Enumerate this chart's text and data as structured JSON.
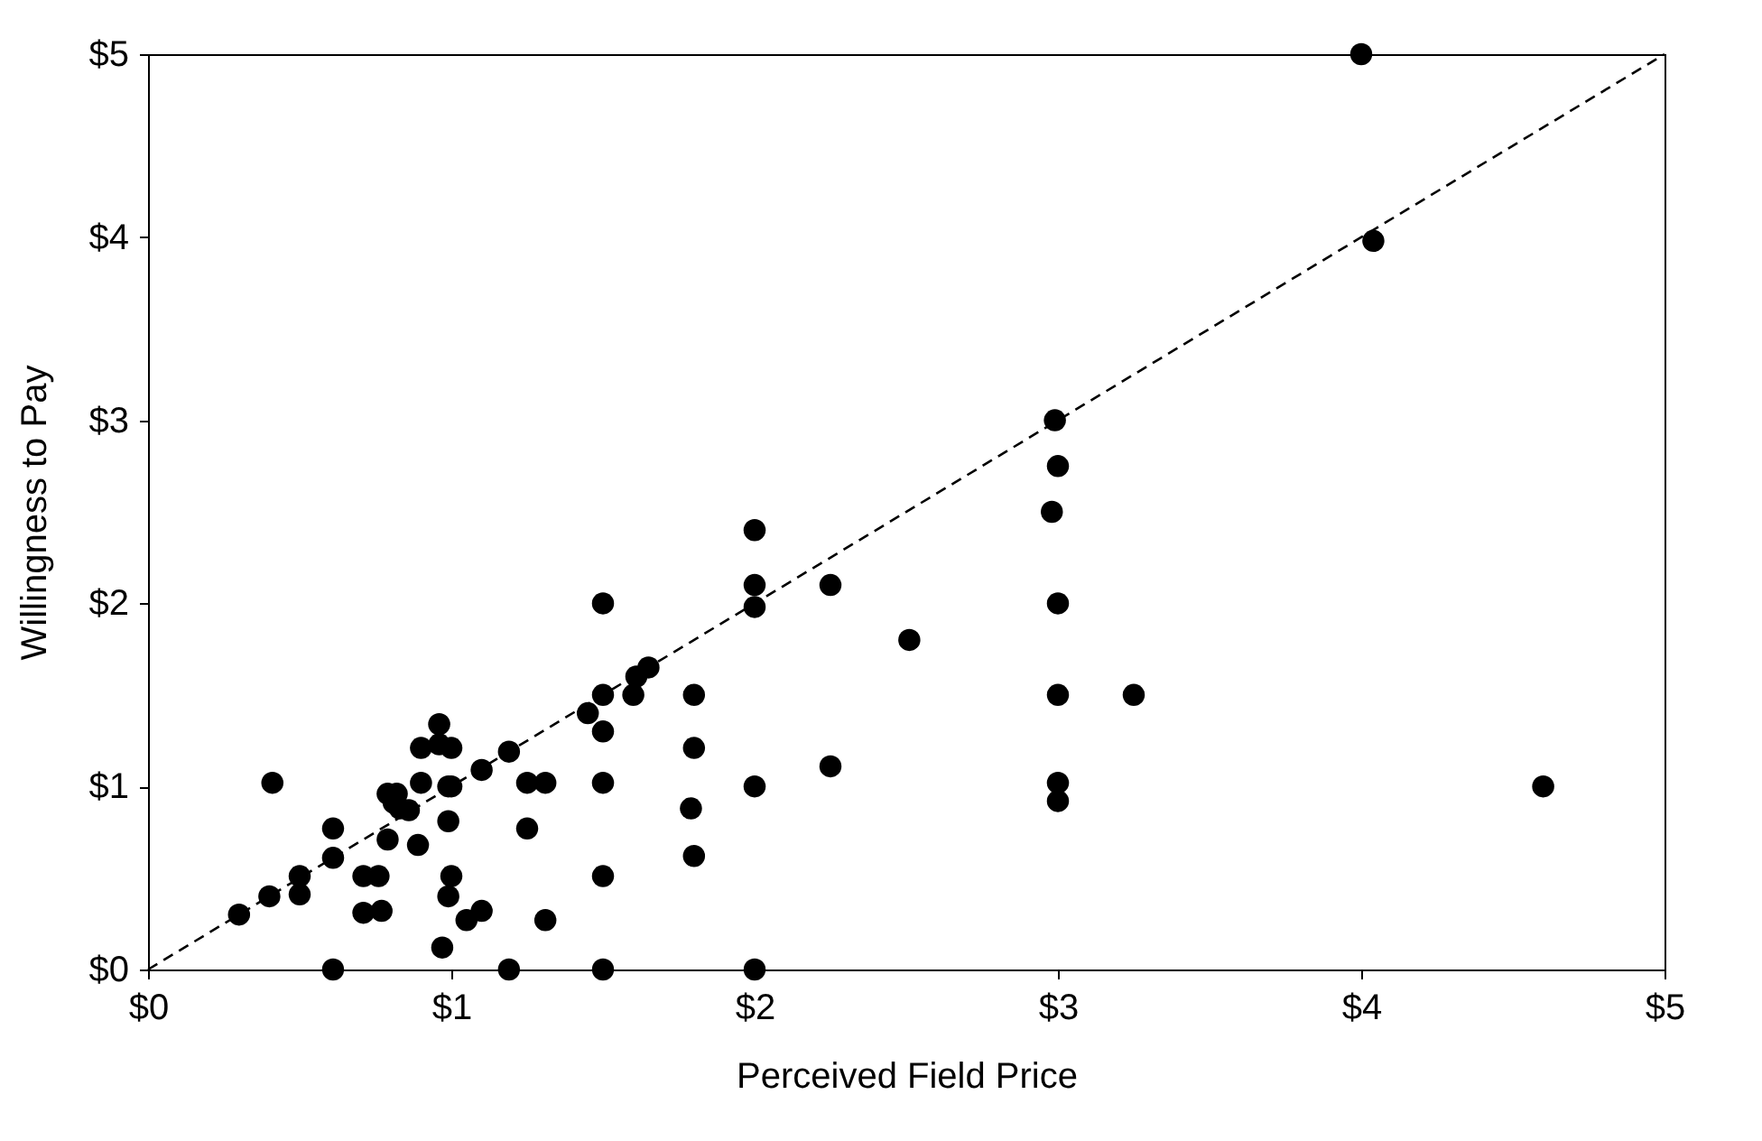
{
  "chart_data": {
    "type": "scatter",
    "xlabel": "Perceived Field Price",
    "ylabel": "Willingness to Pay",
    "xlim": [
      0,
      5
    ],
    "ylim": [
      0,
      5
    ],
    "xticks": [
      {
        "value": 0,
        "label": "$0"
      },
      {
        "value": 1,
        "label": "$1"
      },
      {
        "value": 2,
        "label": "$2"
      },
      {
        "value": 3,
        "label": "$3"
      },
      {
        "value": 4,
        "label": "$4"
      },
      {
        "value": 5,
        "label": "$5"
      }
    ],
    "yticks": [
      {
        "value": 0,
        "label": "$0"
      },
      {
        "value": 1,
        "label": "$1"
      },
      {
        "value": 2,
        "label": "$2"
      },
      {
        "value": 3,
        "label": "$3"
      },
      {
        "value": 4,
        "label": "$4"
      },
      {
        "value": 5,
        "label": "$5"
      }
    ],
    "grid": false,
    "series": [
      {
        "color": "#000000",
        "marker": "circle",
        "x": [
          0.3,
          0.41,
          0.4,
          0.5,
          0.5,
          0.61,
          0.61,
          0.61,
          0.71,
          0.76,
          0.71,
          0.77,
          0.79,
          0.79,
          0.82,
          0.81,
          0.86,
          0.83,
          0.89,
          0.9,
          0.9,
          0.96,
          0.96,
          1.0,
          0.99,
          1.0,
          0.99,
          1.0,
          0.99,
          0.97,
          1.05,
          1.1,
          1.1,
          1.19,
          1.19,
          1.25,
          1.31,
          1.25,
          1.31,
          1.45,
          1.5,
          1.5,
          1.5,
          1.5,
          1.5,
          1.5,
          1.6,
          1.61,
          1.65,
          1.8,
          1.8,
          1.79,
          1.8,
          2.0,
          2.0,
          2.0,
          2.0,
          2.0,
          2.25,
          2.25,
          2.51,
          2.99,
          3.0,
          2.98,
          3.0,
          3.0,
          3.0,
          3.0,
          3.25,
          4.0,
          4.04,
          4.6
        ],
        "values": [
          0.3,
          1.02,
          0.4,
          0.51,
          0.41,
          0.77,
          0.61,
          0,
          0.51,
          0.51,
          0.31,
          0.32,
          0.71,
          0.96,
          0.96,
          0.91,
          0.87,
          0.88,
          0.68,
          1.02,
          1.21,
          1.34,
          1.23,
          1.21,
          1.0,
          1.0,
          0.81,
          0.51,
          0.4,
          0.12,
          0.27,
          0.32,
          1.09,
          1.19,
          0,
          1.02,
          1.02,
          0.77,
          0.27,
          1.4,
          1.5,
          2.0,
          1.3,
          1.02,
          0.51,
          0,
          1.5,
          1.6,
          1.65,
          1.5,
          1.21,
          0.88,
          0.62,
          2.4,
          2.1,
          1.98,
          1.0,
          0,
          2.1,
          1.11,
          1.8,
          3.0,
          2.75,
          2.5,
          2.0,
          1.5,
          1.02,
          0.92,
          1.5,
          5.0,
          3.98,
          1.0
        ]
      },
      {
        "type": "line",
        "color": "#000000",
        "marker": "none",
        "line_style": "dashed",
        "x": [
          0,
          5
        ],
        "values": [
          0,
          5
        ]
      }
    ]
  }
}
